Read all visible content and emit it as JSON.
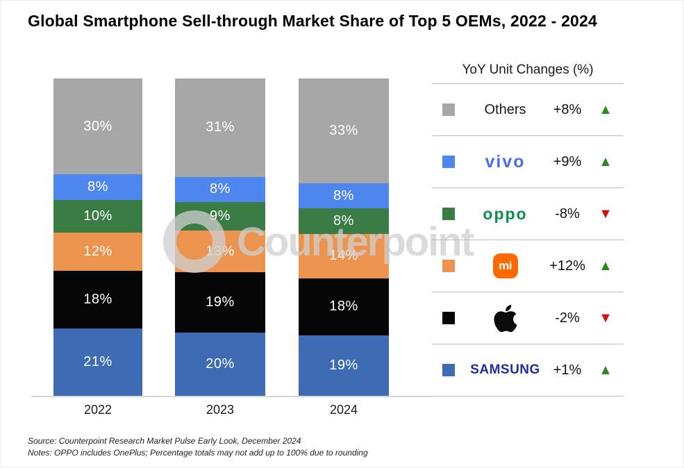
{
  "title": "Global Smartphone Sell-through Market Share of Top 5 OEMs, 2022 - 2024",
  "watermark_text": "Counterpoint",
  "chart_data": {
    "type": "bar",
    "stacked": true,
    "title": "Global Smartphone Sell-through Market Share of Top 5 OEMs, 2022 - 2024",
    "categories": [
      "2022",
      "2023",
      "2024"
    ],
    "series": [
      {
        "name": "Samsung",
        "color": "#3d6cb4",
        "values": [
          21,
          20,
          19
        ]
      },
      {
        "name": "Apple",
        "color": "#060606",
        "values": [
          18,
          19,
          18
        ]
      },
      {
        "name": "Xiaomi",
        "color": "#ed9350",
        "values": [
          12,
          13,
          14
        ]
      },
      {
        "name": "OPPO",
        "color": "#3a7d44",
        "values": [
          10,
          9,
          8
        ]
      },
      {
        "name": "vivo",
        "color": "#4d86ec",
        "values": [
          8,
          8,
          8
        ]
      },
      {
        "name": "Others",
        "color": "#a7a7a7",
        "values": [
          30,
          31,
          33
        ]
      }
    ],
    "segment_order_top_to_bottom": [
      "Others",
      "vivo",
      "OPPO",
      "Xiaomi",
      "Apple",
      "Samsung"
    ],
    "value_suffix": "%",
    "xlabel": "",
    "ylabel": "",
    "grid": false,
    "legend_position": "right"
  },
  "legend": {
    "title": "YoY Unit Changes (%)",
    "up_symbol": "▲",
    "down_symbol": "▼",
    "up_color": "#2e8a1e",
    "down_color": "#cf1312",
    "rows": [
      {
        "name": "Others",
        "label": "Others",
        "swatch_color": "#a7a7a7",
        "change": "+8%",
        "direction": "up"
      },
      {
        "name": "vivo",
        "wordmark": "vivo",
        "brand_color": "#4b6cf0",
        "swatch_color": "#4d86ec",
        "change": "+9%",
        "direction": "up"
      },
      {
        "name": "OPPO",
        "wordmark": "oppo",
        "brand_color": "#0a8f4e",
        "swatch_color": "#3a7d44",
        "change": "-8%",
        "direction": "down"
      },
      {
        "name": "Xiaomi",
        "wordmark": "mi",
        "logo_bg": "#ff6900",
        "swatch_color": "#ed9350",
        "change": "+12%",
        "direction": "up"
      },
      {
        "name": "Apple",
        "swatch_color": "#060606",
        "change": "-2%",
        "direction": "down"
      },
      {
        "name": "Samsung",
        "wordmark": "SAMSUNG",
        "brand_color": "#1f2e9e",
        "swatch_color": "#3d6cb4",
        "change": "+1%",
        "direction": "up"
      }
    ]
  },
  "footer": {
    "source": "Source: Counterpoint Research Market Pulse Early Look, December 2024",
    "notes": "Notes: OPPO includes OnePlus; Percentage totals may not add up to 100% due to rounding"
  }
}
